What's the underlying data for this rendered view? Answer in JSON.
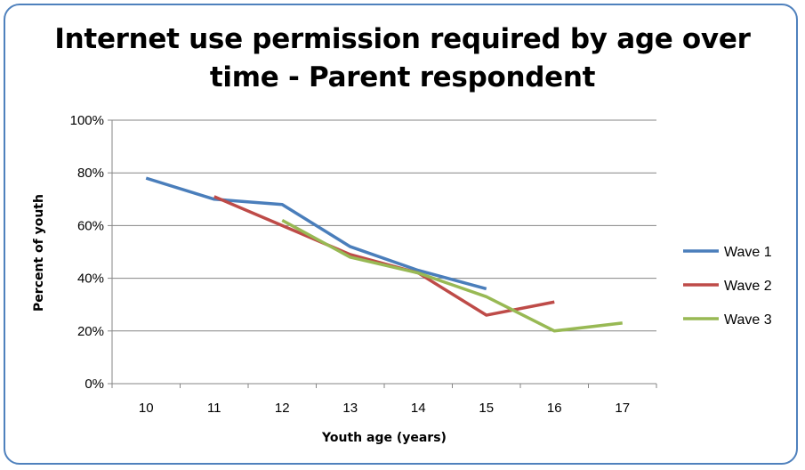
{
  "chart_data": {
    "type": "line",
    "title_lines": [
      "Internet use permission required by age over",
      "time - Parent respondent"
    ],
    "xlabel": "Youth age (years)",
    "ylabel": "Percent of youth",
    "categories": [
      "10",
      "11",
      "12",
      "13",
      "14",
      "15",
      "16",
      "17"
    ],
    "y_ticks": [
      "0%",
      "20%",
      "40%",
      "60%",
      "80%",
      "100%"
    ],
    "ylim": [
      0,
      100
    ],
    "grid": "horizontal",
    "legend_position": "right",
    "series": [
      {
        "name": "Wave 1",
        "color": "#4a7ebb",
        "values": [
          78,
          70,
          68,
          52,
          43,
          36,
          null,
          null
        ]
      },
      {
        "name": "Wave 2",
        "color": "#be4b48",
        "values": [
          null,
          71,
          60,
          49,
          42,
          26,
          31,
          null
        ]
      },
      {
        "name": "Wave 3",
        "color": "#98b954",
        "values": [
          null,
          null,
          62,
          48,
          42,
          33,
          20,
          23
        ]
      }
    ]
  }
}
